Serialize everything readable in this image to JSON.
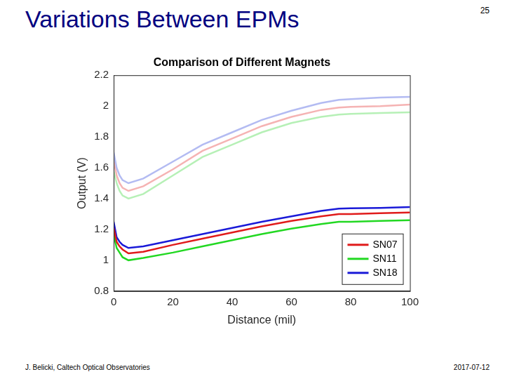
{
  "slide": {
    "title": "Variations Between EPMs",
    "page": "25",
    "footer_left": "J. Belicki, Caltech Optical Observatories",
    "footer_right": "2017-07-12"
  },
  "chart_data": {
    "type": "line",
    "title": "Comparison of Different Magnets",
    "xlabel": "Distance (mil)",
    "ylabel": "Output (V)",
    "x": [
      0,
      1,
      2,
      3,
      5,
      10,
      20,
      30,
      40,
      50,
      60,
      70,
      76,
      80,
      90,
      100
    ],
    "series": [
      {
        "color": "#b3bbf2",
        "values": [
          1.7,
          1.6,
          1.55,
          1.52,
          1.5,
          1.53,
          1.64,
          1.75,
          1.83,
          1.91,
          1.97,
          2.02,
          2.04,
          2.045,
          2.055,
          2.06
        ]
      },
      {
        "color": "#f5b3b3",
        "values": [
          1.65,
          1.55,
          1.5,
          1.47,
          1.45,
          1.48,
          1.59,
          1.71,
          1.79,
          1.87,
          1.93,
          1.975,
          1.99,
          1.995,
          2.0,
          2.01
        ]
      },
      {
        "color": "#b6f0b6",
        "values": [
          1.58,
          1.5,
          1.45,
          1.42,
          1.4,
          1.43,
          1.55,
          1.67,
          1.75,
          1.83,
          1.89,
          1.93,
          1.945,
          1.95,
          1.955,
          1.96
        ]
      },
      {
        "name": "SN07",
        "color": "#e01b1b",
        "values": [
          1.21,
          1.12,
          1.09,
          1.07,
          1.045,
          1.055,
          1.1,
          1.14,
          1.18,
          1.22,
          1.255,
          1.285,
          1.3,
          1.3,
          1.305,
          1.31
        ]
      },
      {
        "name": "SN11",
        "color": "#22d822",
        "values": [
          1.17,
          1.08,
          1.05,
          1.02,
          1.0,
          1.015,
          1.05,
          1.09,
          1.13,
          1.17,
          1.205,
          1.235,
          1.25,
          1.25,
          1.255,
          1.26
        ]
      },
      {
        "name": "SN18",
        "color": "#1a1ad8",
        "values": [
          1.25,
          1.15,
          1.12,
          1.1,
          1.08,
          1.09,
          1.13,
          1.17,
          1.21,
          1.25,
          1.285,
          1.32,
          1.335,
          1.337,
          1.34,
          1.345
        ]
      }
    ],
    "xlim": [
      0,
      100
    ],
    "xticks": [
      0,
      20,
      40,
      60,
      80,
      100
    ],
    "ylim": [
      0.8,
      2.2
    ],
    "yticks": [
      0.8,
      1,
      1.2,
      1.4,
      1.6,
      1.8,
      2,
      2.2
    ],
    "grid": false,
    "legend": "lower right"
  }
}
